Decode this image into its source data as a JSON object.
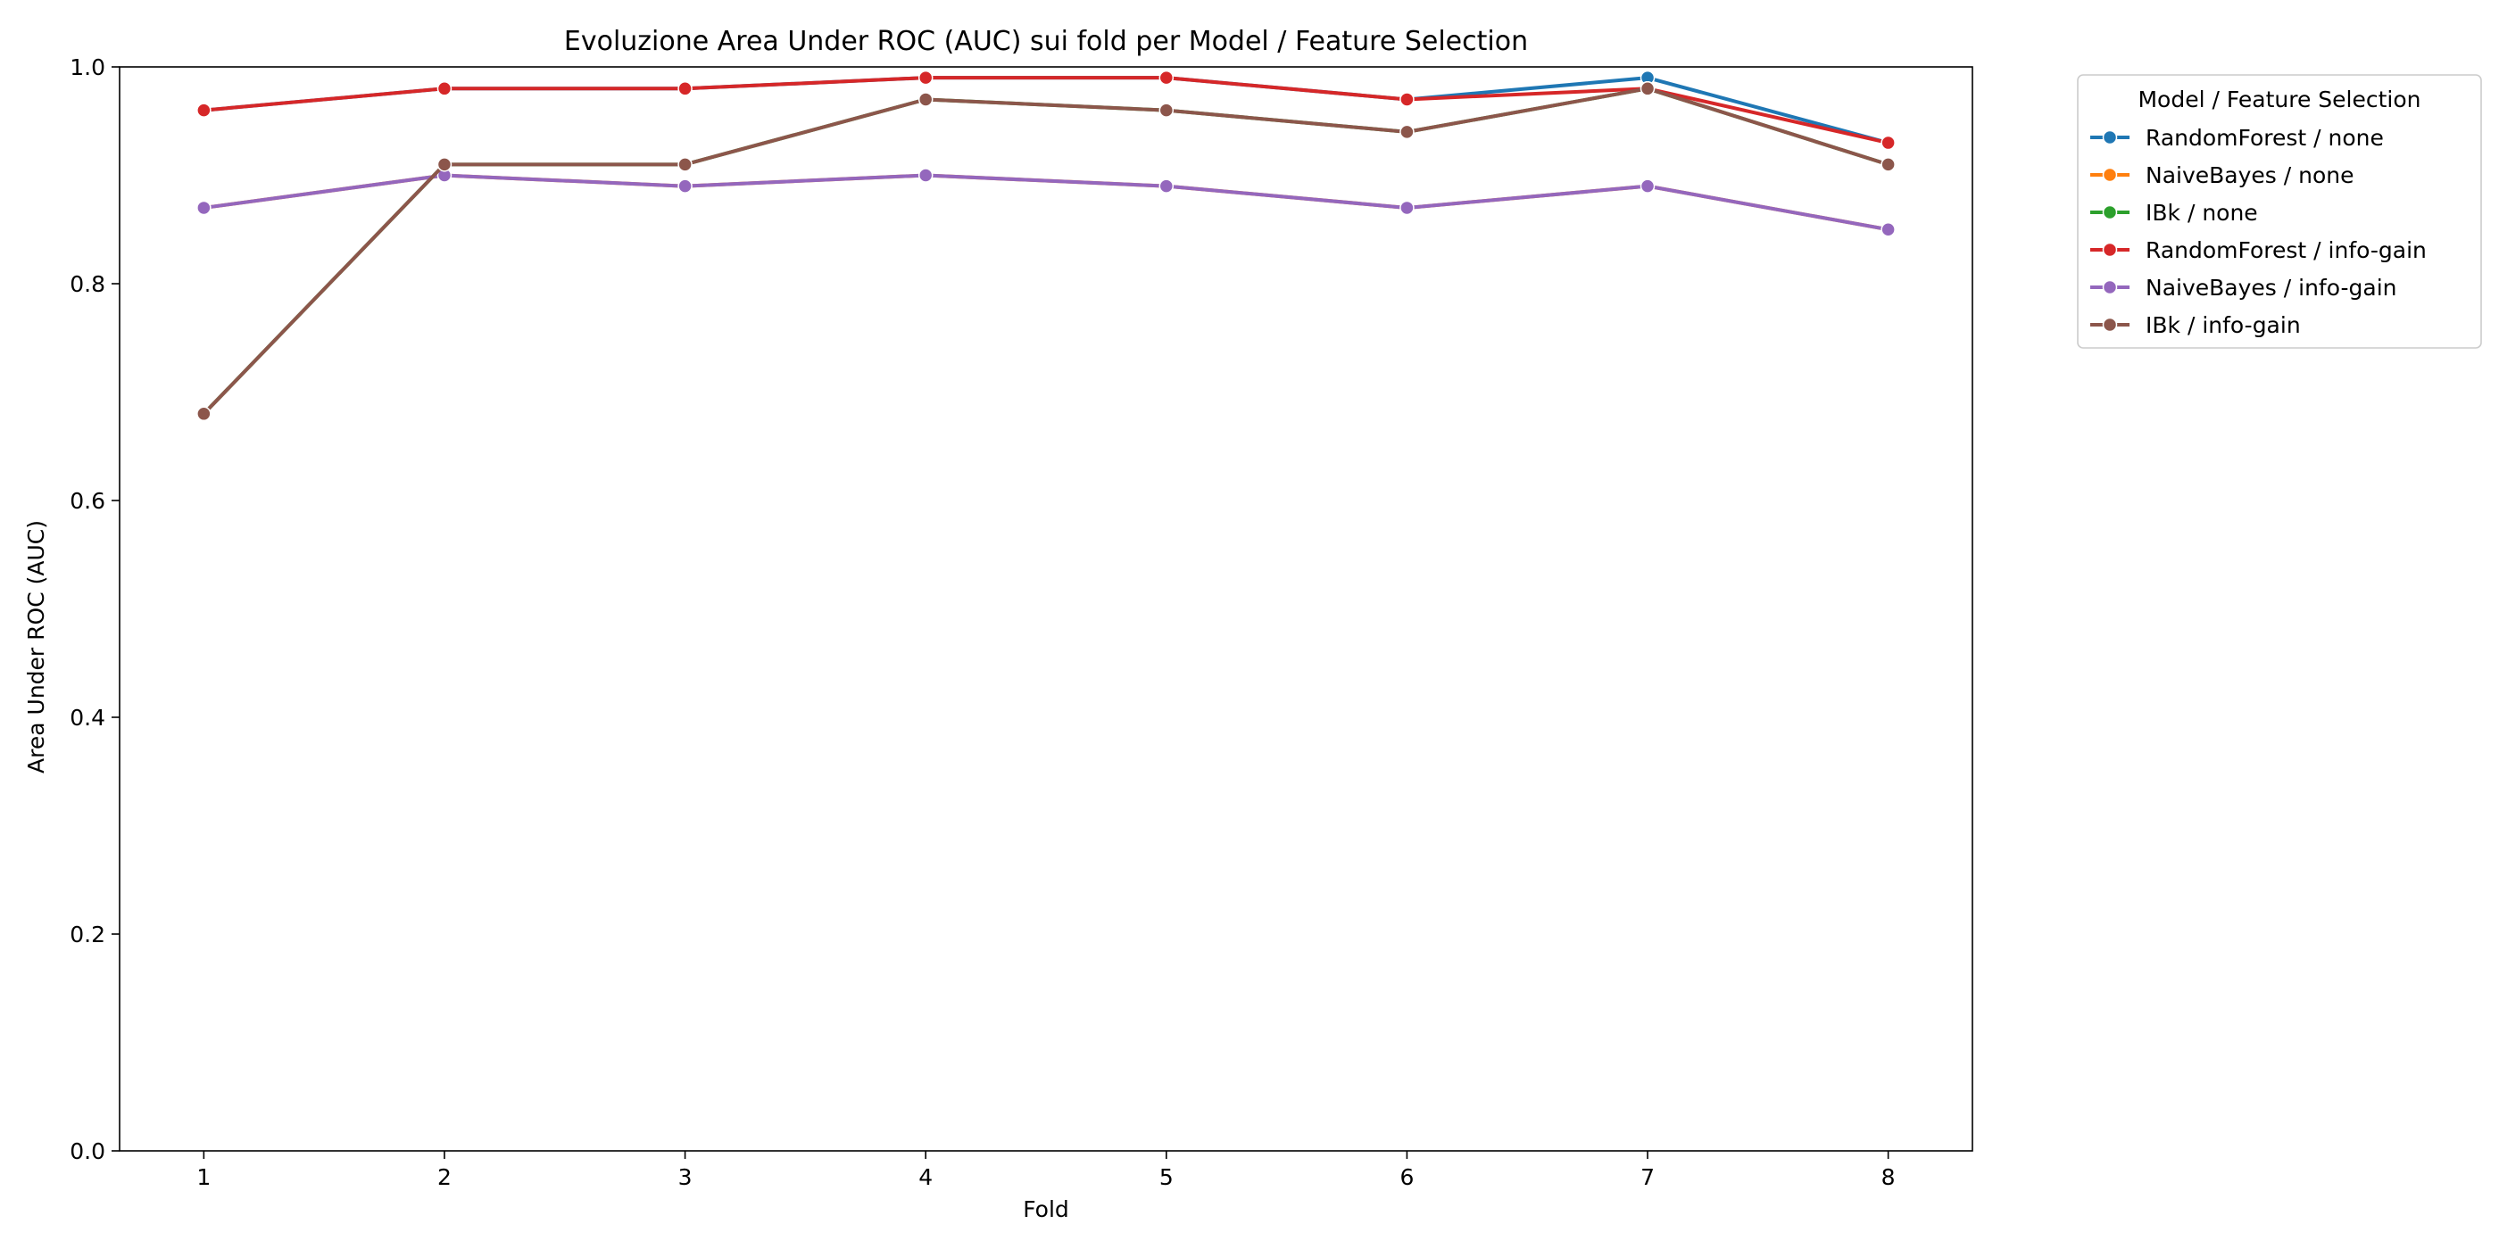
{
  "chart_data": {
    "type": "line",
    "title": "Evoluzione Area Under ROC (AUC) sui fold per Model / Feature Selection",
    "xlabel": "Fold",
    "ylabel": "Area Under ROC (AUC)",
    "x": [
      1,
      2,
      3,
      4,
      5,
      6,
      7,
      8
    ],
    "x_ticks": [
      "1",
      "2",
      "3",
      "4",
      "5",
      "6",
      "7",
      "8"
    ],
    "xlim": [
      0.65,
      8.35
    ],
    "ylim": [
      0.0,
      1.0
    ],
    "y_ticks": [
      "0.0",
      "0.2",
      "0.4",
      "0.6",
      "0.8",
      "1.0"
    ],
    "grid": false,
    "legend": {
      "title": "Model / Feature Selection",
      "placement": "outside-top-right"
    },
    "series": [
      {
        "name": "RandomForest / none",
        "color": "#1f77b4",
        "values": [
          0.96,
          0.98,
          0.98,
          0.99,
          0.99,
          0.97,
          0.99,
          0.93
        ]
      },
      {
        "name": "NaiveBayes / none",
        "color": "#ff7f0e",
        "values": [
          0.87,
          0.9,
          0.89,
          0.9,
          0.89,
          0.87,
          0.89,
          0.85
        ]
      },
      {
        "name": "IBk / none",
        "color": "#2ca02c",
        "values": [
          0.68,
          0.91,
          0.91,
          0.97,
          0.96,
          0.94,
          0.98,
          0.91
        ]
      },
      {
        "name": "RandomForest / info-gain",
        "color": "#d62728",
        "values": [
          0.96,
          0.98,
          0.98,
          0.99,
          0.99,
          0.97,
          0.98,
          0.93
        ]
      },
      {
        "name": "NaiveBayes / info-gain",
        "color": "#9467bd",
        "values": [
          0.87,
          0.9,
          0.89,
          0.9,
          0.89,
          0.87,
          0.89,
          0.85
        ]
      },
      {
        "name": "IBk / info-gain",
        "color": "#8c564b",
        "values": [
          0.68,
          0.91,
          0.91,
          0.97,
          0.96,
          0.94,
          0.98,
          0.91
        ]
      }
    ]
  }
}
